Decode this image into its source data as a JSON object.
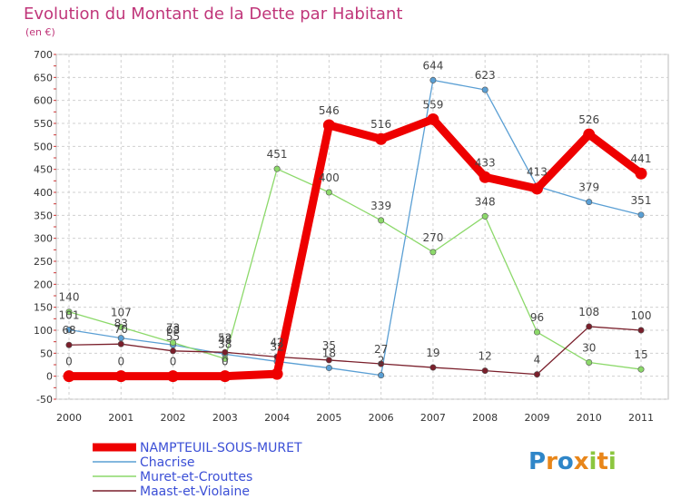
{
  "chart_data": {
    "type": "line",
    "title": "Evolution du Montant de la Dette par Habitant",
    "subtitle": "(en €)",
    "x": [
      "2000",
      "2001",
      "2002",
      "2003",
      "2004",
      "2005",
      "2006",
      "2007",
      "2008",
      "2009",
      "2010",
      "2011"
    ],
    "ylim": [
      -50,
      700
    ],
    "yticks": [
      -50,
      0,
      50,
      100,
      150,
      200,
      250,
      300,
      350,
      400,
      450,
      500,
      550,
      600,
      650,
      700
    ],
    "grid": true,
    "legend": "bottom-left",
    "series": [
      {
        "name": "NAMPTEUIL-SOUS-MURET",
        "color": "#ee0000",
        "bold": true,
        "values": [
          0,
          0,
          0,
          0,
          5,
          546,
          516,
          559,
          433,
          408,
          526,
          441
        ],
        "labels": [
          "0",
          "0",
          "0",
          "0",
          "",
          "546",
          "516",
          "559",
          "433",
          "",
          "526",
          "441"
        ]
      },
      {
        "name": "Chacrise",
        "color": "#5a9fd4",
        "values": [
          101,
          83,
          68,
          48,
          32,
          18,
          2,
          644,
          623,
          413,
          379,
          351
        ],
        "labels": [
          "101",
          "83",
          "68",
          "48",
          "32",
          "18",
          "2",
          "644",
          "623",
          "413",
          "379",
          "351"
        ]
      },
      {
        "name": "Muret-et-Crouttes",
        "color": "#8cd96a",
        "values": [
          140,
          107,
          73,
          38,
          451,
          400,
          339,
          270,
          348,
          96,
          30,
          15
        ],
        "labels": [
          "140",
          "107",
          "73",
          "38",
          "451",
          "400",
          "339",
          "270",
          "348",
          "96",
          "30",
          "15"
        ]
      },
      {
        "name": "Maast-et-Violaine",
        "color": "#7a1f2b",
        "values": [
          68,
          70,
          55,
          52,
          42,
          35,
          27,
          19,
          12,
          4,
          108,
          100
        ],
        "labels": [
          "68",
          "70",
          "55",
          "52",
          "42",
          "35",
          "27",
          "19",
          "12",
          "4",
          "108",
          "100"
        ]
      }
    ]
  },
  "logo": {
    "text": "Proxiti"
  }
}
